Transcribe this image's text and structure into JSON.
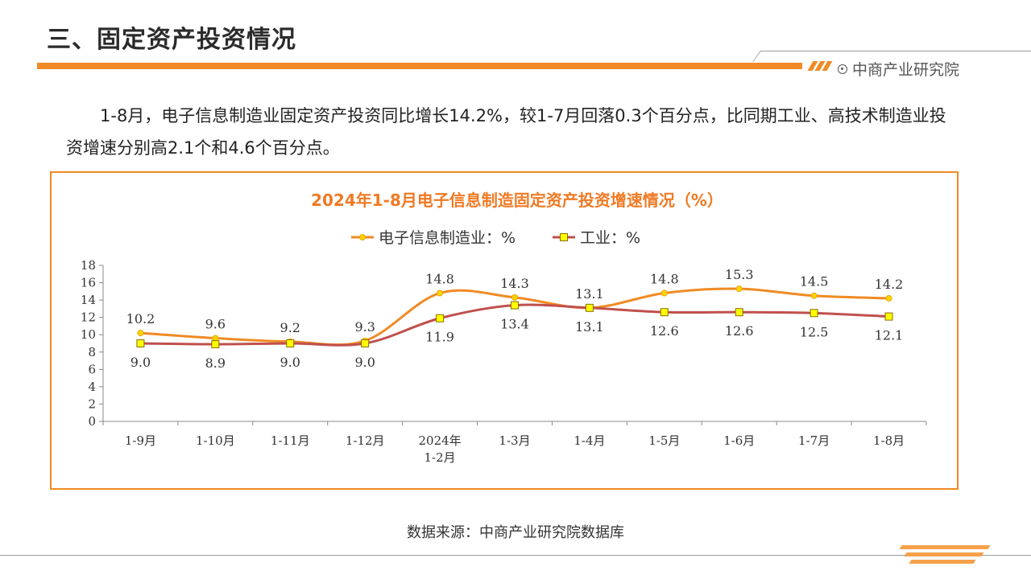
{
  "header": {
    "title": "三、固定资产投资情况",
    "brand": "中商产业研究院"
  },
  "summary": {
    "text": "1-8月，电子信息制造业固定资产投资同比增长14.2%，较1-7月回落0.3个百分点，比同期工业、高技术制造业投资增速分别高2.1个和4.6个百分点。"
  },
  "colors": {
    "accent": "#f08a24",
    "series1": "#f08a24",
    "series1_marker": "#ffd400",
    "series2": "#c0504d",
    "series2_marker": "#ffff00",
    "chart_title": "#f07a24"
  },
  "chart_data": {
    "type": "line",
    "title": "2024年1-8月电子信息制造固定资产投资增速情况（%）",
    "categories": [
      "1-9月",
      "1-10月",
      "1-11月",
      "1-12月",
      "2024年\n1-2月",
      "1-3月",
      "1-4月",
      "1-5月",
      "1-6月",
      "1-7月",
      "1-8月"
    ],
    "series": [
      {
        "name": "电子信息制造业：%",
        "values": [
          10.2,
          9.6,
          9.2,
          9.3,
          14.8,
          14.3,
          13.1,
          14.8,
          15.3,
          14.5,
          14.2
        ],
        "marker": "circle"
      },
      {
        "name": "工业：%",
        "values": [
          9.0,
          8.9,
          9.0,
          9.0,
          11.9,
          13.4,
          13.1,
          12.6,
          12.6,
          12.5,
          12.1
        ],
        "marker": "square"
      }
    ],
    "yticks": [
      0,
      2,
      4,
      6,
      8,
      10,
      12,
      14,
      16,
      18
    ],
    "ylim": [
      0,
      18
    ],
    "legend_position": "top",
    "grid": false,
    "smooth": true
  },
  "footer": {
    "source": "数据来源：中商产业研究院数据库"
  }
}
